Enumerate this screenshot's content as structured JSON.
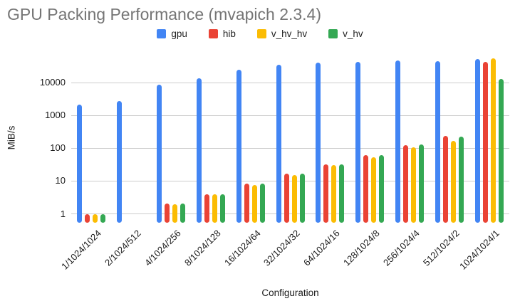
{
  "title": "GPU Packing Performance (mvapich 2.3.4)",
  "axes": {
    "y_title": "MiB/s",
    "x_title": "Configuration"
  },
  "chart_data": {
    "type": "bar",
    "title": "GPU Packing Performance (mvapich 2.3.4)",
    "xlabel": "Configuration",
    "ylabel": "MiB/s",
    "y_scale": "log",
    "y_ticks": [
      1,
      10,
      100,
      1000,
      10000
    ],
    "ylim": [
      0.5,
      75000
    ],
    "grid": true,
    "legend_position": "top",
    "categories": [
      "1/1024/1024",
      "2/1024/512",
      "4/1024/256",
      "8/1024/128",
      "16/1024/64",
      "32/1024/32",
      "64/1024/16",
      "128/1024/8",
      "256/1024/4",
      "512/1024/2",
      "1024/1024/1"
    ],
    "series": [
      {
        "name": "gpu",
        "color": "#4285F4",
        "values": [
          2100,
          2700,
          8300,
          13000,
          23500,
          34000,
          40000,
          42500,
          45000,
          44000,
          51500
        ]
      },
      {
        "name": "hib",
        "color": "#EA4335",
        "values": [
          0.95,
          null,
          2.0,
          3.9,
          8.0,
          16,
          31,
          60,
          122,
          230,
          42000
        ]
      },
      {
        "name": "v_hv_hv",
        "color": "#FBBC04",
        "values": [
          0.93,
          null,
          1.9,
          3.8,
          7.5,
          15,
          30,
          53,
          104,
          160,
          54000
        ]
      },
      {
        "name": "v_hv",
        "color": "#34A853",
        "values": [
          0.96,
          null,
          2.0,
          3.9,
          8.0,
          16,
          32,
          60,
          126,
          215,
          12500
        ]
      }
    ]
  }
}
